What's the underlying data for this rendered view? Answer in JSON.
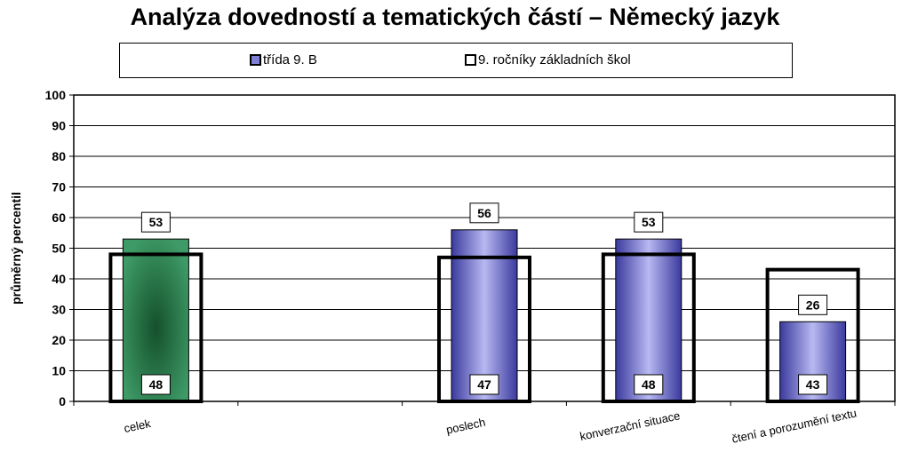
{
  "chart_data": {
    "type": "bar",
    "title": "Analýza dovedností a tematických částí – Německý jazyk",
    "ylabel": "průměrný percentil",
    "xlabel": "",
    "ylim": [
      0,
      100
    ],
    "yticks": [
      0,
      10,
      20,
      30,
      40,
      50,
      60,
      70,
      80,
      90,
      100
    ],
    "grid": true,
    "legend_position": "top",
    "categories": [
      "celek",
      "",
      "poslech",
      "konverzační situace",
      "čtení a porozumění textu"
    ],
    "series": [
      {
        "name": "třída 9. B",
        "values": [
          53,
          null,
          56,
          53,
          26
        ],
        "labels": [
          "53",
          "",
          "56",
          "53",
          "26"
        ],
        "color": "#7f7fd6",
        "highlight_color": "#3e9a66"
      },
      {
        "name": "9. ročníky základních škol",
        "values": [
          48,
          null,
          47,
          48,
          43
        ],
        "labels": [
          "48",
          "",
          "47",
          "48",
          "43"
        ],
        "color": "#000000",
        "style": "outline"
      }
    ]
  }
}
